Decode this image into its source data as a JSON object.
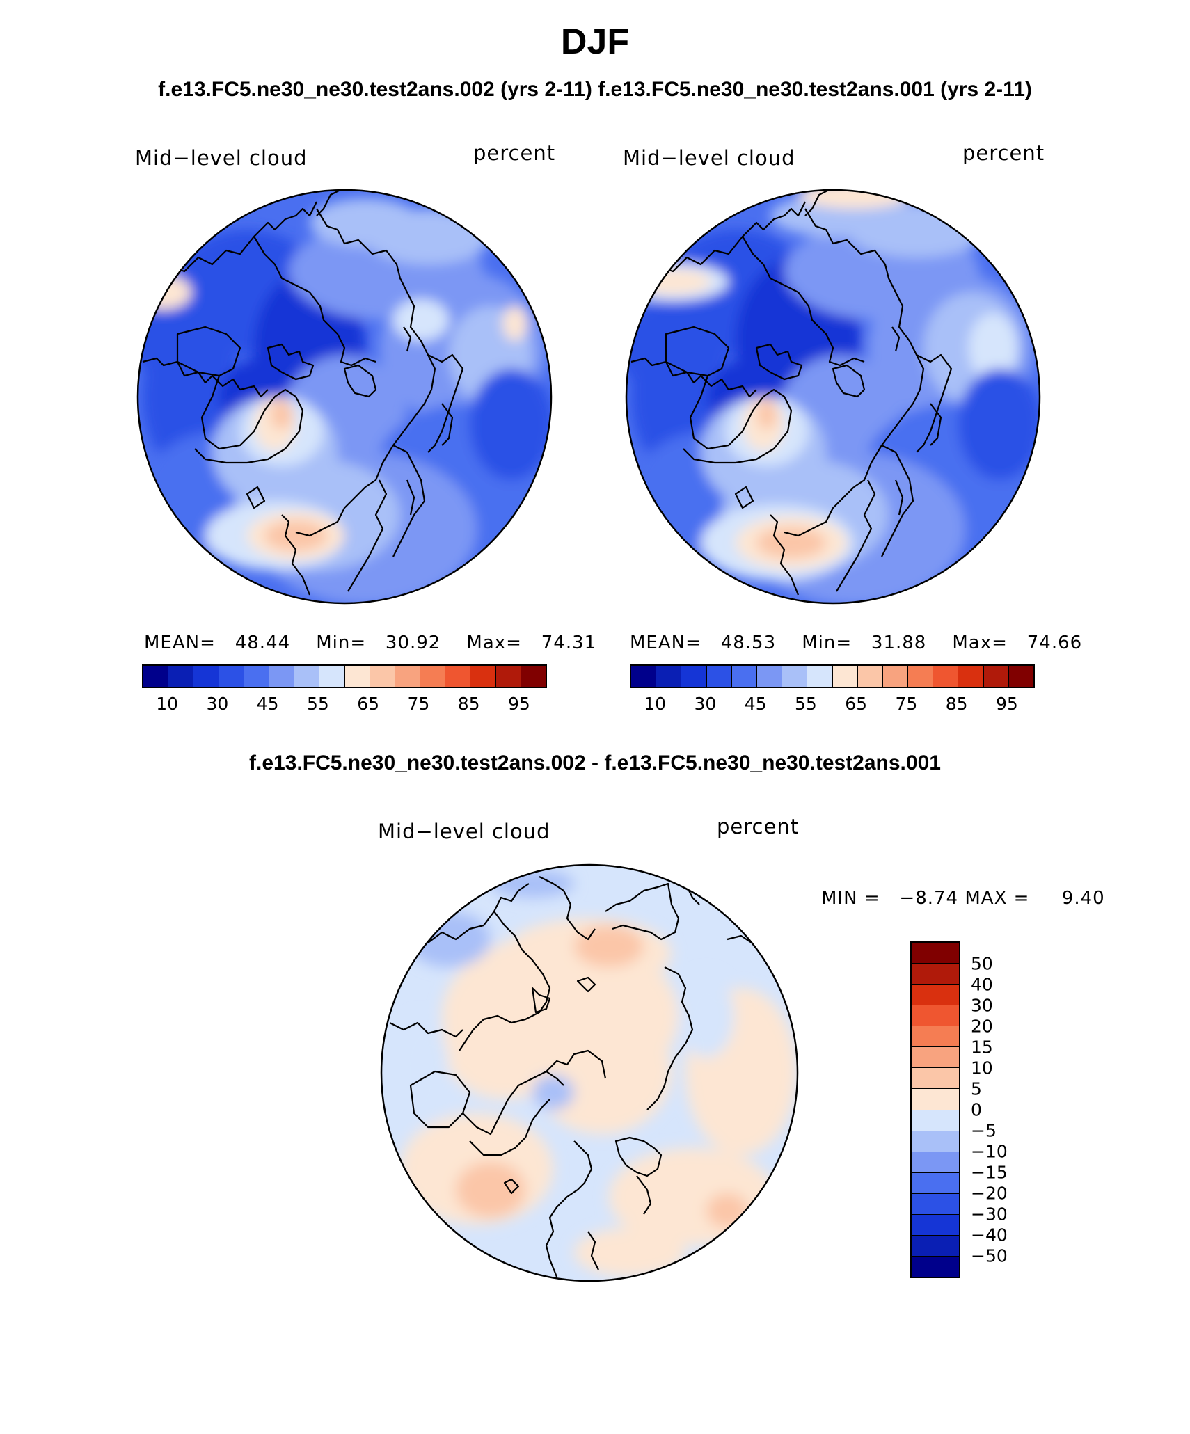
{
  "title": "DJF",
  "subtitle_top": "f.e13.FC5.ne30_ne30.test2ans.002 (yrs 2-11) f.e13.FC5.ne30_ne30.test2ans.001 (yrs 2-11)",
  "subtitle_diff": "f.e13.FC5.ne30_ne30.test2ans.002 - f.e13.FC5.ne30_ne30.test2ans.001",
  "panels": [
    {
      "variable": "Mid−level cloud",
      "units": "percent",
      "mean_label": "MEAN=",
      "mean_value": "48.44",
      "min_label": "Min=",
      "min_value": "30.92",
      "max_label": "Max=",
      "max_value": "74.31"
    },
    {
      "variable": "Mid−level cloud",
      "units": "percent",
      "mean_label": "MEAN=",
      "mean_value": "48.53",
      "min_label": "Min=",
      "min_value": "31.88",
      "max_label": "Max=",
      "max_value": "74.66"
    }
  ],
  "diff_panel": {
    "variable": "Mid−level cloud",
    "units": "percent",
    "min_label": "MIN =",
    "min_value": "−8.74",
    "max_label": "MAX =",
    "max_value": "9.40"
  },
  "abs_colorbar": {
    "colors": [
      "#00008b",
      "#0a1fb4",
      "#1535d6",
      "#2c51e6",
      "#4a6ff0",
      "#7b97f4",
      "#a9c0f8",
      "#d6e5fc",
      "#fde6d3",
      "#fbc6a8",
      "#f8a37f",
      "#f57d53",
      "#ef5630",
      "#d9300f",
      "#b01a0a",
      "#800000"
    ],
    "ticks": [
      "10",
      "30",
      "45",
      "55",
      "65",
      "75",
      "85",
      "95"
    ]
  },
  "diff_colorbar": {
    "colors": [
      "#800000",
      "#b01a0a",
      "#d9300f",
      "#ef5630",
      "#f57d53",
      "#f8a37f",
      "#fbc6a8",
      "#fde6d3",
      "#d6e5fc",
      "#a9c0f8",
      "#7b97f4",
      "#4a6ff0",
      "#2c51e6",
      "#1535d6",
      "#0a1fb4",
      "#00008b"
    ],
    "ticks": [
      "50",
      "40",
      "30",
      "20",
      "15",
      "10",
      "5",
      "0",
      "−5",
      "−10",
      "−15",
      "−20",
      "−30",
      "−40",
      "−50"
    ]
  },
  "colors": {
    "deep_blue": "#1535d6",
    "mid_blue": "#2c51e6",
    "blue": "#4a6ff0",
    "light_blue": "#7b97f4",
    "pale_blue": "#a9c0f8",
    "very_pale_blue": "#d6e5fc",
    "pale_orange": "#fde6d3",
    "light_orange": "#fbc6a8",
    "orange": "#f8a37f"
  }
}
